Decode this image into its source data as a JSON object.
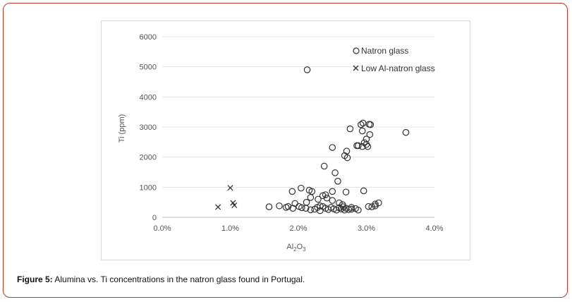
{
  "caption": {
    "label": "Figure 5:",
    "text": "Alumina vs. Ti concentrations in the natron glass found in Portugal."
  },
  "chart_data": {
    "type": "scatter",
    "xlabel_main": "Al",
    "xlabel_sub1": "2",
    "xlabel_mid": "O",
    "xlabel_sub2": "3",
    "ylabel": "Ti (ppm)",
    "xlim": [
      0,
      0.04
    ],
    "ylim": [
      0,
      6000
    ],
    "x_ticks": [
      0,
      0.01,
      0.02,
      0.03,
      0.04
    ],
    "x_tick_labels": [
      "0.0%",
      "1.0%",
      "2.0%",
      "3.0%",
      "4.0%"
    ],
    "y_ticks": [
      0,
      1000,
      2000,
      3000,
      4000,
      5000,
      6000
    ],
    "y_tick_labels": [
      "0",
      "1000",
      "2000",
      "3000",
      "4000",
      "5000",
      "6000"
    ],
    "grid": "horizontal",
    "legend_position": "top-right",
    "series": [
      {
        "name": "Natron glass",
        "marker": "circle",
        "color": "#333333",
        "points": [
          [
            0.0213,
            4900
          ],
          [
            0.0358,
            2820
          ],
          [
            0.0292,
            3080
          ],
          [
            0.0295,
            3130
          ],
          [
            0.0304,
            3090
          ],
          [
            0.0306,
            3080
          ],
          [
            0.0276,
            2940
          ],
          [
            0.0294,
            2870
          ],
          [
            0.0305,
            2750
          ],
          [
            0.03,
            2600
          ],
          [
            0.0297,
            2480
          ],
          [
            0.03,
            2420
          ],
          [
            0.0288,
            2380
          ],
          [
            0.0286,
            2380
          ],
          [
            0.0294,
            2350
          ],
          [
            0.0302,
            2350
          ],
          [
            0.025,
            2320
          ],
          [
            0.0271,
            2200
          ],
          [
            0.0268,
            2050
          ],
          [
            0.0272,
            1980
          ],
          [
            0.0238,
            1700
          ],
          [
            0.0254,
            1480
          ],
          [
            0.0258,
            1200
          ],
          [
            0.0191,
            860
          ],
          [
            0.0204,
            970
          ],
          [
            0.0216,
            900
          ],
          [
            0.022,
            860
          ],
          [
            0.025,
            860
          ],
          [
            0.027,
            840
          ],
          [
            0.0296,
            880
          ],
          [
            0.0236,
            720
          ],
          [
            0.024,
            750
          ],
          [
            0.0218,
            660
          ],
          [
            0.0229,
            600
          ],
          [
            0.0242,
            640
          ],
          [
            0.025,
            560
          ],
          [
            0.026,
            480
          ],
          [
            0.0212,
            500
          ],
          [
            0.0195,
            460
          ],
          [
            0.0265,
            420
          ],
          [
            0.0157,
            350
          ],
          [
            0.0172,
            380
          ],
          [
            0.0182,
            330
          ],
          [
            0.0185,
            360
          ],
          [
            0.0192,
            300
          ],
          [
            0.0201,
            360
          ],
          [
            0.0205,
            320
          ],
          [
            0.0211,
            300
          ],
          [
            0.0218,
            250
          ],
          [
            0.0224,
            270
          ],
          [
            0.0228,
            330
          ],
          [
            0.0232,
            220
          ],
          [
            0.0236,
            360
          ],
          [
            0.024,
            300
          ],
          [
            0.0244,
            260
          ],
          [
            0.0248,
            330
          ],
          [
            0.0252,
            280
          ],
          [
            0.0256,
            240
          ],
          [
            0.026,
            320
          ],
          [
            0.0263,
            280
          ],
          [
            0.0266,
            350
          ],
          [
            0.027,
            300
          ],
          [
            0.0274,
            260
          ],
          [
            0.0278,
            330
          ],
          [
            0.0284,
            290
          ],
          [
            0.0303,
            360
          ],
          [
            0.0308,
            350
          ],
          [
            0.0313,
            440
          ],
          [
            0.0318,
            480
          ],
          [
            0.0313,
            380
          ],
          [
            0.0288,
            240
          ],
          [
            0.0232,
            380
          ],
          [
            0.0268,
            240
          ],
          [
            0.0278,
            270
          ]
        ]
      },
      {
        "name": "Low Al-natron glass",
        "marker": "x",
        "color": "#333333",
        "points": [
          [
            0.01,
            980
          ],
          [
            0.0104,
            480
          ],
          [
            0.0106,
            400
          ],
          [
            0.0082,
            340
          ]
        ]
      }
    ]
  }
}
